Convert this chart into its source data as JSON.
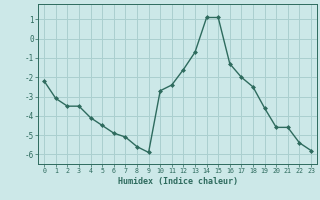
{
  "x": [
    0,
    1,
    2,
    3,
    4,
    5,
    6,
    7,
    8,
    9,
    10,
    11,
    12,
    13,
    14,
    15,
    16,
    17,
    18,
    19,
    20,
    21,
    22,
    23
  ],
  "y": [
    -2.2,
    -3.1,
    -3.5,
    -3.5,
    -4.1,
    -4.5,
    -4.9,
    -5.1,
    -5.6,
    -5.9,
    -2.7,
    -2.4,
    -1.6,
    -0.7,
    1.1,
    1.1,
    -1.3,
    -2.0,
    -2.5,
    -3.6,
    -4.6,
    -4.6,
    -5.4,
    -5.8
  ],
  "line_color": "#2e6b5e",
  "marker": "D",
  "marker_size": 2.0,
  "linewidth": 1.0,
  "xlabel": "Humidex (Indice chaleur)",
  "xlim": [
    -0.5,
    23.5
  ],
  "ylim": [
    -6.5,
    1.8
  ],
  "yticks": [
    -6,
    -5,
    -4,
    -3,
    -2,
    -1,
    0,
    1
  ],
  "xticks": [
    0,
    1,
    2,
    3,
    4,
    5,
    6,
    7,
    8,
    9,
    10,
    11,
    12,
    13,
    14,
    15,
    16,
    17,
    18,
    19,
    20,
    21,
    22,
    23
  ],
  "bg_color": "#cce8e8",
  "grid_color": "#aacfcf",
  "tick_color": "#2e6b5e",
  "xlabel_fontsize": 6.0,
  "xtick_fontsize": 4.8,
  "ytick_fontsize": 5.5
}
